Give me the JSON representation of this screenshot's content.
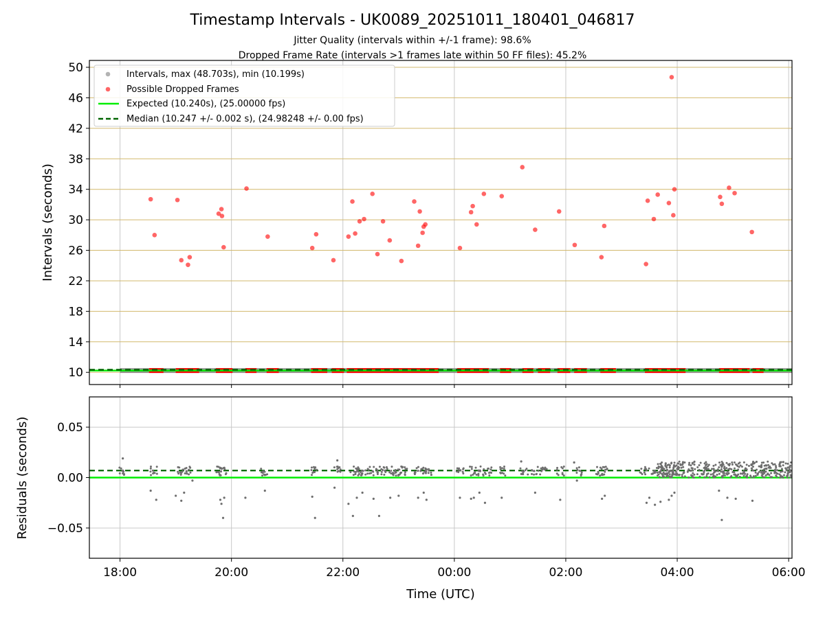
{
  "chart_data": [
    {
      "type": "scatter",
      "title": "Timestamp Intervals - UK0089_20251011_180401_046817",
      "subtitle_lines": [
        "Jitter Quality (intervals within +/-1 frame): 98.6%",
        "Dropped Frame Rate (intervals >1 frames late within 50 FF files): 45.2%"
      ],
      "xlabel": "",
      "ylabel": "Intervals (seconds)",
      "x_unit": "hours since 18:00 UTC",
      "xlim": [
        -0.55,
        12.06
      ],
      "ylim": [
        8.4,
        50.9
      ],
      "yticks": [
        10,
        14,
        18,
        22,
        26,
        30,
        34,
        38,
        42,
        46,
        50
      ],
      "grid": true,
      "legend_placement": "upper-left",
      "legend": [
        "Intervals, max (48.703s), min (10.199s)",
        "Possible Dropped Frames",
        "Expected (10.240s), (25.00000 fps)",
        "Median (10.247 +/- 0.002 s), (24.98248 +/- 0.00 fps)"
      ],
      "expected": 10.24,
      "median": 10.247,
      "dropped_points": [
        [
          0.55,
          32.7
        ],
        [
          0.62,
          28.0
        ],
        [
          1.03,
          32.6
        ],
        [
          1.1,
          24.7
        ],
        [
          1.22,
          24.1
        ],
        [
          1.25,
          25.1
        ],
        [
          1.77,
          30.8
        ],
        [
          1.82,
          31.4
        ],
        [
          1.83,
          30.5
        ],
        [
          1.86,
          26.4
        ],
        [
          2.27,
          34.1
        ],
        [
          2.65,
          27.8
        ],
        [
          3.45,
          26.3
        ],
        [
          3.52,
          28.1
        ],
        [
          3.83,
          24.7
        ],
        [
          4.1,
          27.8
        ],
        [
          4.17,
          32.4
        ],
        [
          4.22,
          28.2
        ],
        [
          4.3,
          29.8
        ],
        [
          4.38,
          30.1
        ],
        [
          4.53,
          33.4
        ],
        [
          4.62,
          25.5
        ],
        [
          4.72,
          29.8
        ],
        [
          4.84,
          27.3
        ],
        [
          5.05,
          24.6
        ],
        [
          5.28,
          32.4
        ],
        [
          5.35,
          26.6
        ],
        [
          5.38,
          31.1
        ],
        [
          5.43,
          28.3
        ],
        [
          5.45,
          29.1
        ],
        [
          5.48,
          29.4
        ],
        [
          6.1,
          26.3
        ],
        [
          6.3,
          31.0
        ],
        [
          6.33,
          31.8
        ],
        [
          6.4,
          29.4
        ],
        [
          6.53,
          33.4
        ],
        [
          6.85,
          33.1
        ],
        [
          7.22,
          36.9
        ],
        [
          7.45,
          28.7
        ],
        [
          7.88,
          31.1
        ],
        [
          8.16,
          26.7
        ],
        [
          8.64,
          25.1
        ],
        [
          8.69,
          29.2
        ],
        [
          9.44,
          24.2
        ],
        [
          9.47,
          32.5
        ],
        [
          9.58,
          30.1
        ],
        [
          9.65,
          33.3
        ],
        [
          9.85,
          32.2
        ],
        [
          9.9,
          48.7
        ],
        [
          9.93,
          30.6
        ],
        [
          9.95,
          34.0
        ],
        [
          10.77,
          33.0
        ],
        [
          10.8,
          32.1
        ],
        [
          10.93,
          34.2
        ],
        [
          11.03,
          33.5
        ],
        [
          11.34,
          28.4
        ]
      ],
      "dropped_band_ranges_hours": [
        [
          0.52,
          0.78
        ],
        [
          1.0,
          1.42
        ],
        [
          1.72,
          2.02
        ],
        [
          2.25,
          2.45
        ],
        [
          2.63,
          2.85
        ],
        [
          3.43,
          3.72
        ],
        [
          3.8,
          4.02
        ],
        [
          4.07,
          5.72
        ],
        [
          6.05,
          6.62
        ],
        [
          6.82,
          7.02
        ],
        [
          7.22,
          7.42
        ],
        [
          7.5,
          7.72
        ],
        [
          7.85,
          8.08
        ],
        [
          8.15,
          8.38
        ],
        [
          8.62,
          8.9
        ],
        [
          9.42,
          10.15
        ],
        [
          10.75,
          11.3
        ],
        [
          11.35,
          11.55
        ]
      ],
      "interval_band_range_hours": [
        0.0,
        12.06
      ],
      "interval_band_value": 10.24
    },
    {
      "type": "scatter",
      "title": "",
      "xlabel": "Time (UTC)",
      "ylabel": "Residuals (seconds)",
      "x_unit": "hours since 18:00 UTC",
      "xlim": [
        -0.55,
        12.06
      ],
      "ylim": [
        -0.08,
        0.08
      ],
      "yticks": [
        -0.05,
        0.0,
        0.05
      ],
      "ytick_labels": [
        "−0.05",
        "0.00",
        "0.05"
      ],
      "xticks": [
        0,
        2,
        4,
        6,
        8,
        10,
        12
      ],
      "xtick_labels": [
        "18:00",
        "20:00",
        "22:00",
        "00:00",
        "02:00",
        "04:00",
        "06:00"
      ],
      "grid": true,
      "expected_residual": 0.0,
      "median_residual": 0.007,
      "cluster_hours": [
        0.05,
        0.6,
        1.1,
        1.2,
        1.8,
        1.85,
        2.6,
        3.5,
        3.9,
        4.2,
        4.3,
        4.35,
        4.5,
        4.65,
        4.75,
        4.9,
        5.0,
        5.1,
        5.35,
        5.45,
        5.55,
        6.1,
        6.35,
        6.5,
        6.6,
        6.85,
        7.25,
        7.45,
        7.6,
        7.9,
        8.25,
        8.6,
        8.7,
        9.4,
        9.55,
        9.7,
        9.85
      ],
      "outlier_points": [
        [
          0.05,
          0.019
        ],
        [
          0.55,
          -0.013
        ],
        [
          0.65,
          -0.022
        ],
        [
          1.0,
          -0.018
        ],
        [
          1.1,
          -0.023
        ],
        [
          1.15,
          -0.015
        ],
        [
          1.2,
          0.004
        ],
        [
          1.3,
          -0.003
        ],
        [
          1.8,
          -0.022
        ],
        [
          1.82,
          -0.026
        ],
        [
          1.85,
          -0.04
        ],
        [
          1.87,
          -0.02
        ],
        [
          2.25,
          -0.02
        ],
        [
          2.6,
          -0.013
        ],
        [
          3.45,
          -0.019
        ],
        [
          3.5,
          -0.04
        ],
        [
          3.85,
          -0.01
        ],
        [
          3.9,
          0.017
        ],
        [
          4.1,
          -0.026
        ],
        [
          4.18,
          -0.038
        ],
        [
          4.25,
          -0.02
        ],
        [
          4.35,
          -0.015
        ],
        [
          4.55,
          -0.021
        ],
        [
          4.65,
          -0.038
        ],
        [
          4.85,
          -0.02
        ],
        [
          5.0,
          -0.018
        ],
        [
          5.35,
          -0.02
        ],
        [
          5.45,
          -0.015
        ],
        [
          5.5,
          -0.022
        ],
        [
          6.1,
          -0.02
        ],
        [
          6.3,
          -0.021
        ],
        [
          6.35,
          -0.02
        ],
        [
          6.45,
          -0.015
        ],
        [
          6.55,
          -0.025
        ],
        [
          6.85,
          -0.02
        ],
        [
          7.2,
          0.016
        ],
        [
          7.45,
          -0.015
        ],
        [
          7.9,
          -0.022
        ],
        [
          8.15,
          0.015
        ],
        [
          8.2,
          -0.003
        ],
        [
          8.65,
          -0.021
        ],
        [
          8.7,
          -0.018
        ],
        [
          9.45,
          -0.025
        ],
        [
          9.5,
          -0.02
        ],
        [
          9.6,
          -0.027
        ],
        [
          9.7,
          -0.024
        ],
        [
          9.85,
          -0.022
        ],
        [
          9.9,
          -0.018
        ],
        [
          9.95,
          -0.015
        ],
        [
          10.75,
          -0.013
        ],
        [
          10.8,
          -0.042
        ],
        [
          10.9,
          -0.02
        ],
        [
          11.05,
          -0.021
        ],
        [
          11.35,
          -0.023
        ]
      ],
      "dense_cluster_range_hours": [
        9.65,
        12.06
      ],
      "dense_cluster_residual_range": [
        0.0,
        0.016
      ]
    }
  ],
  "colors": {
    "interval": "#808080",
    "dropped": "#ff0000",
    "expected": "#00ee00",
    "median": "#006400",
    "hgrid": "#d2b86c",
    "grid": "#c8c8c8",
    "axis": "#000000",
    "residual": "#6e6e6e"
  }
}
